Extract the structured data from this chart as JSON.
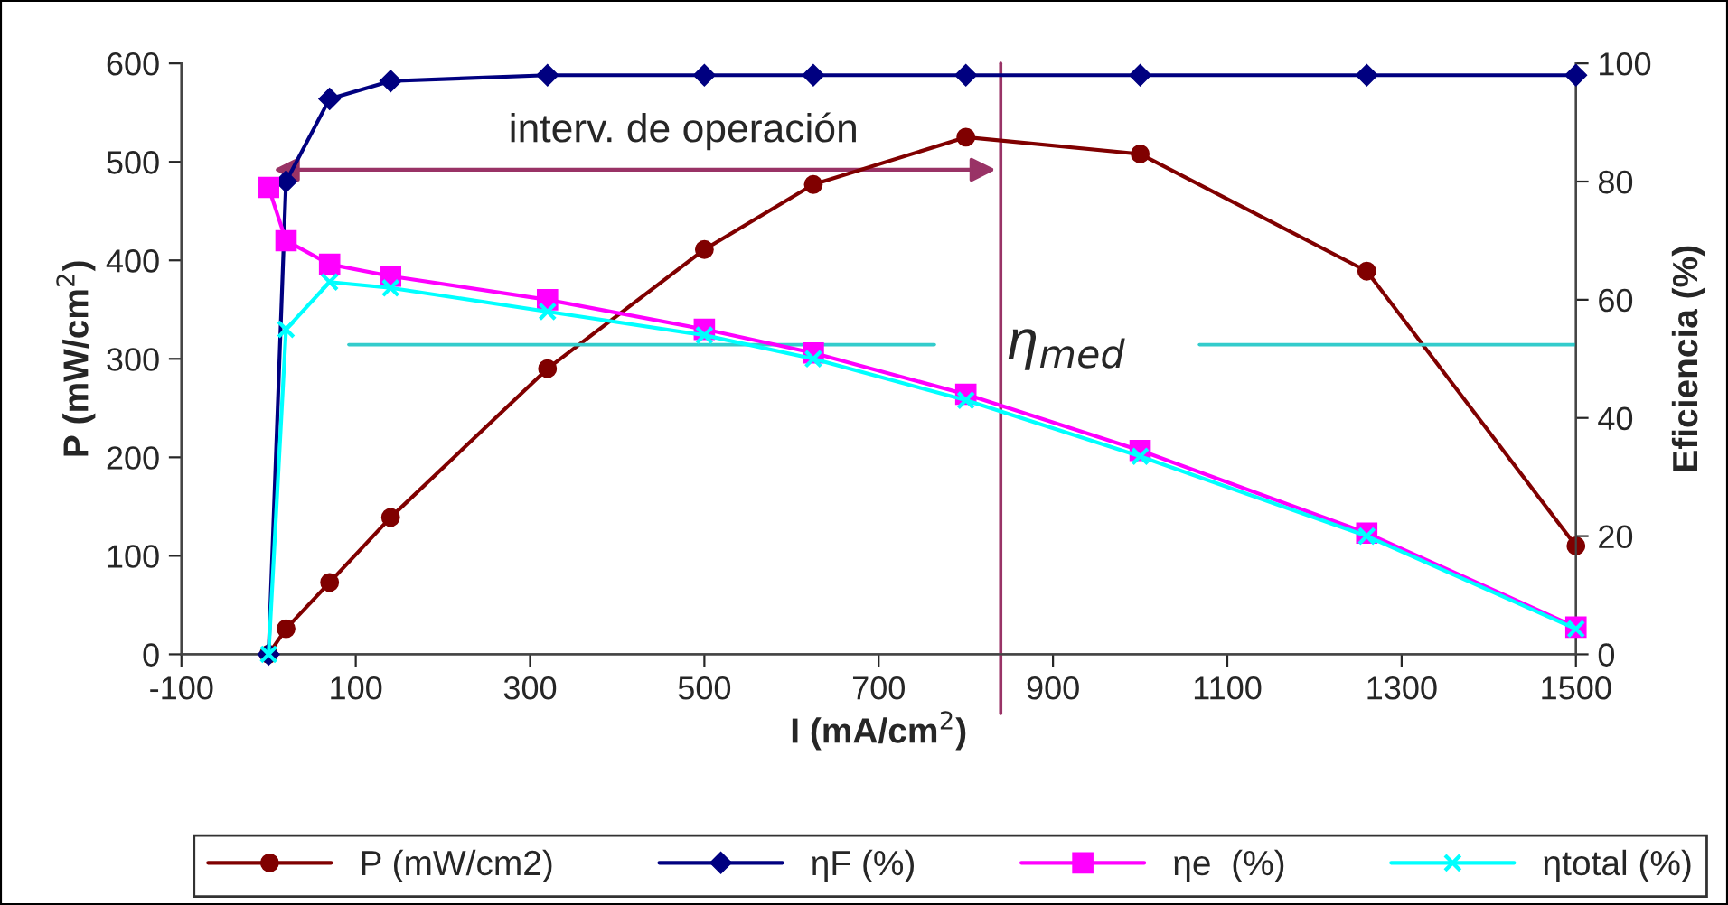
{
  "chart_data": {
    "type": "line",
    "x": [
      0,
      20,
      70,
      140,
      320,
      500,
      625,
      800,
      1000,
      1260,
      1500
    ],
    "series": [
      {
        "name": "P (mW/cm2)",
        "color": "#800000",
        "marker": "circle",
        "values": [
          0,
          26,
          73,
          139,
          290,
          411,
          477,
          525,
          508,
          389,
          110
        ]
      },
      {
        "name": "ηF (%)",
        "color": "#000080",
        "marker": "diamond",
        "axis": "y2",
        "values": [
          0,
          80,
          94,
          97,
          98,
          98,
          98,
          98,
          98,
          98,
          98
        ]
      },
      {
        "name": "ηe  (%)",
        "color": "#ff00ff",
        "marker": "square",
        "axis": "y2",
        "values": [
          79,
          70,
          66,
          64,
          60,
          55,
          51,
          44,
          34.5,
          20.5,
          4.6
        ]
      },
      {
        "name": "ηtotal (%)",
        "color": "#00ffff",
        "marker": "cross",
        "axis": "y2",
        "values": [
          0,
          55,
          63,
          62,
          58,
          54,
          50,
          43,
          33.5,
          20,
          4.3
        ]
      }
    ],
    "xlabel": "I (mA/cm$^{2}$)",
    "ylabel": "P (mW/cm$^{2}$)",
    "y2label": "Eficiencia (%)",
    "xlim": [
      -100,
      1500
    ],
    "xticks": [
      -100,
      100,
      300,
      500,
      700,
      900,
      1100,
      1300,
      1500
    ],
    "ylim": [
      0,
      600
    ],
    "yticks": [
      0,
      100,
      200,
      300,
      400,
      500,
      600
    ],
    "y2lim": [
      0,
      100
    ],
    "y2ticks": [
      0,
      20,
      40,
      60,
      80,
      100
    ],
    "ref_lines": [
      {
        "axis": "x",
        "value": 840,
        "color": "#993366"
      },
      {
        "axis": "y2",
        "value": 52.4,
        "label": "η$_{med}$",
        "color": "#33cccc"
      }
    ],
    "annotations": [
      "interv. de operación"
    ],
    "legend": "bottom",
    "grid": false,
    "line_style": "solid"
  }
}
